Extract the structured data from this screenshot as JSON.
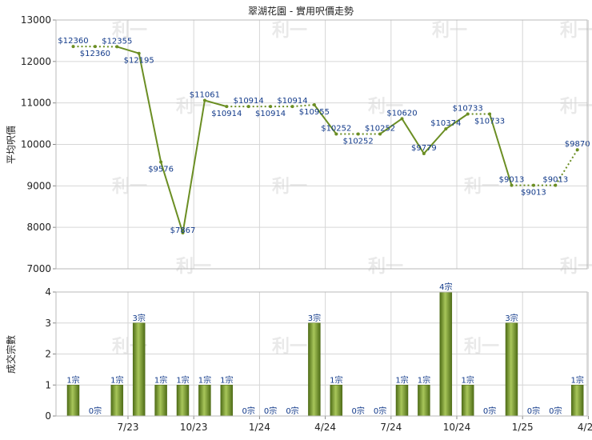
{
  "chart_data": [
    {
      "type": "line",
      "title": "翠湖花園 - 實用呎價走勢",
      "ylabel": "平均呎價",
      "ylim": [
        7000,
        13000
      ],
      "yticks": [
        13000,
        12000,
        11000,
        10000,
        9000,
        8000,
        7000
      ],
      "grid": true,
      "color": "#6b8e23",
      "points": [
        {
          "x": 0,
          "value": 12360,
          "label": "$12360"
        },
        {
          "x": 1,
          "value": 12360,
          "label": "$12360"
        },
        {
          "x": 2,
          "value": 12355,
          "label": "$12355"
        },
        {
          "x": 3,
          "value": 12195,
          "label": "$12195"
        },
        {
          "x": 4,
          "value": 9576,
          "label": "$9576"
        },
        {
          "x": 5,
          "value": 7867,
          "label": "$7867"
        },
        {
          "x": 6,
          "value": 11061,
          "label": "$11061"
        },
        {
          "x": 7,
          "value": 10914,
          "label": "$10914"
        },
        {
          "x": 8,
          "value": 10914,
          "label": "$10914"
        },
        {
          "x": 9,
          "value": 10914,
          "label": "$10914"
        },
        {
          "x": 10,
          "value": 10914,
          "label": "$10914"
        },
        {
          "x": 11,
          "value": 10955,
          "label": "$10955"
        },
        {
          "x": 12,
          "value": 10252,
          "label": "$10252"
        },
        {
          "x": 13,
          "value": 10252,
          "label": "$10252"
        },
        {
          "x": 14,
          "value": 10252,
          "label": "$10252"
        },
        {
          "x": 15,
          "value": 10620,
          "label": "$10620"
        },
        {
          "x": 16,
          "value": 9779,
          "label": "$9779"
        },
        {
          "x": 17,
          "value": 10374,
          "label": "$10374"
        },
        {
          "x": 18,
          "value": 10733,
          "label": "$10733"
        },
        {
          "x": 19,
          "value": 10733,
          "label": "$10733"
        },
        {
          "x": 20,
          "value": 9013,
          "label": "$9013"
        },
        {
          "x": 21,
          "value": 9013,
          "label": "$9013"
        },
        {
          "x": 22,
          "value": 9013,
          "label": "$9013"
        },
        {
          "x": 23,
          "value": 9870,
          "label": "$9870"
        }
      ],
      "dotted_segments": [
        [
          0,
          1
        ],
        [
          1,
          2
        ],
        [
          7,
          8
        ],
        [
          8,
          9
        ],
        [
          9,
          10
        ],
        [
          10,
          11
        ],
        [
          12,
          13
        ],
        [
          13,
          14
        ],
        [
          18,
          19
        ],
        [
          20,
          21
        ],
        [
          21,
          22
        ],
        [
          22,
          23
        ]
      ]
    },
    {
      "type": "bar",
      "ylabel": "成交宗數",
      "ylim": [
        0,
        4
      ],
      "yticks": [
        4,
        3,
        2,
        1,
        0
      ],
      "grid": true,
      "color": "#6b8e23",
      "values": [
        1,
        0,
        1,
        3,
        1,
        1,
        1,
        1,
        0,
        0,
        0,
        3,
        1,
        0,
        0,
        1,
        1,
        4,
        1,
        0,
        3,
        0,
        0,
        1
      ],
      "value_labels": [
        "1宗",
        "0宗",
        "1宗",
        "3宗",
        "1宗",
        "1宗",
        "1宗",
        "1宗",
        "0宗",
        "0宗",
        "0宗",
        "3宗",
        "1宗",
        "0宗",
        "0宗",
        "1宗",
        "1宗",
        "4宗",
        "1宗",
        "0宗",
        "3宗",
        "0宗",
        "0宗",
        "1宗"
      ],
      "xticks": [
        {
          "label": "7/23",
          "at": 2
        },
        {
          "label": "10/23",
          "at": 5
        },
        {
          "label": "1/24",
          "at": 8
        },
        {
          "label": "4/24",
          "at": 11
        },
        {
          "label": "7/24",
          "at": 14
        },
        {
          "label": "10/24",
          "at": 17
        },
        {
          "label": "1/25",
          "at": 20
        },
        {
          "label": "4/25",
          "at": 23
        }
      ]
    }
  ],
  "watermark": "利一"
}
